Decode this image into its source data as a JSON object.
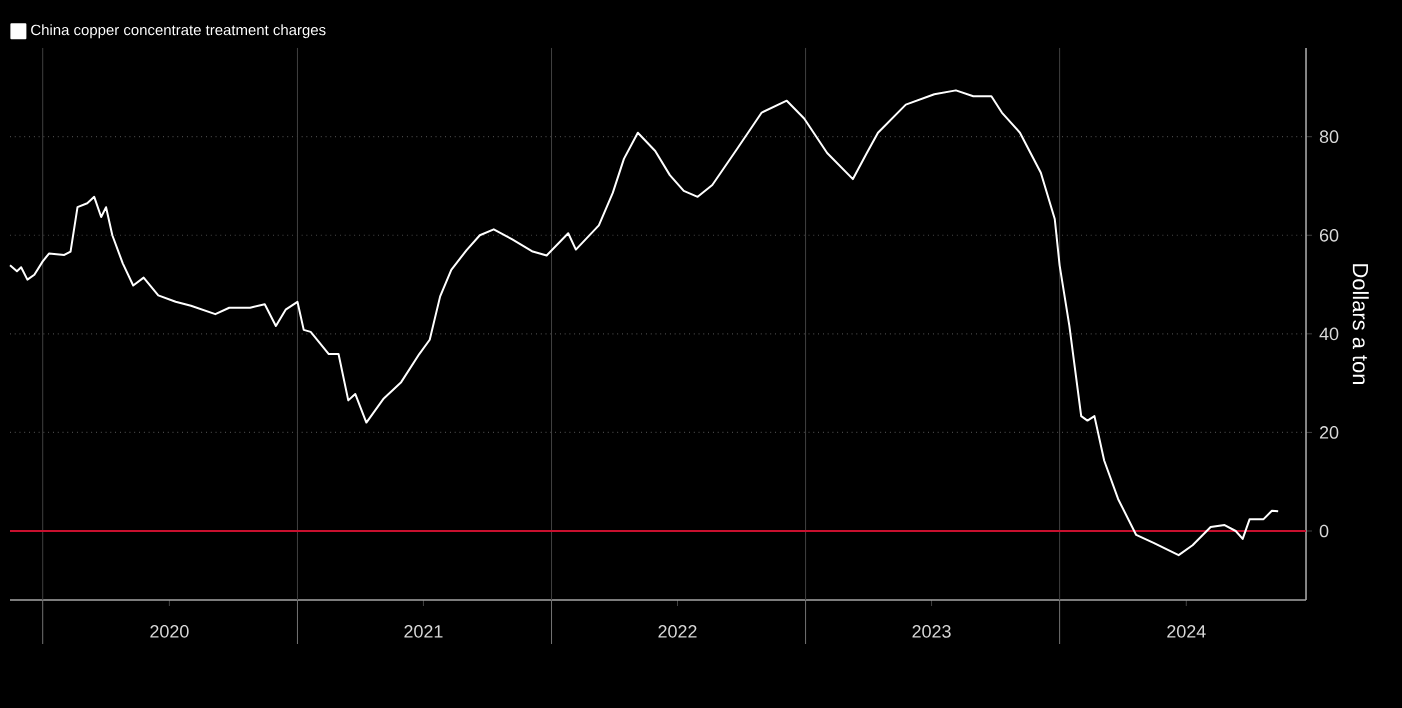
{
  "chart_data": {
    "type": "line",
    "x": [
      "2019-11-15",
      "2019-11-25",
      "2019-12-01",
      "2019-12-10",
      "2019-12-20",
      "2020-01-01",
      "2020-01-10",
      "2020-02-01",
      "2020-02-10",
      "2020-02-20",
      "2020-03-05",
      "2020-03-15",
      "2020-03-25",
      "2020-04-01",
      "2020-04-10",
      "2020-04-25",
      "2020-05-10",
      "2020-05-25",
      "2020-06-15",
      "2020-07-10",
      "2020-08-01",
      "2020-09-05",
      "2020-09-25",
      "2020-10-25",
      "2020-11-15",
      "2020-12-01",
      "2020-12-15",
      "2021-01-01",
      "2021-01-10",
      "2021-01-20",
      "2021-02-15",
      "2021-03-01",
      "2021-03-15",
      "2021-03-25",
      "2021-04-10",
      "2021-05-05",
      "2021-05-30",
      "2021-06-25",
      "2021-07-10",
      "2021-07-25",
      "2021-08-10",
      "2021-09-01",
      "2021-09-20",
      "2021-10-10",
      "2021-11-05",
      "2021-12-05",
      "2021-12-25",
      "2022-01-25",
      "2022-02-05",
      "2022-03-10",
      "2022-03-30",
      "2022-04-15",
      "2022-05-05",
      "2022-05-30",
      "2022-06-20",
      "2022-07-10",
      "2022-07-30",
      "2022-08-20",
      "2022-09-25",
      "2022-10-30",
      "2022-12-05",
      "2022-12-30",
      "2023-02-01",
      "2023-03-10",
      "2023-03-30",
      "2023-04-15",
      "2023-05-25",
      "2023-07-05",
      "2023-08-05",
      "2023-08-30",
      "2023-09-25",
      "2023-10-10",
      "2023-11-05",
      "2023-12-05",
      "2023-12-25",
      "2024-01-01",
      "2024-01-15",
      "2024-02-01",
      "2024-02-10",
      "2024-02-20",
      "2024-03-05",
      "2024-03-25",
      "2024-04-20",
      "2024-05-15",
      "2024-06-20",
      "2024-07-10",
      "2024-08-05",
      "2024-08-25",
      "2024-09-10",
      "2024-09-20",
      "2024-09-30",
      "2024-10-20",
      "2024-11-01",
      "2024-11-10"
    ],
    "series": [
      {
        "name": "China copper concentrate treatment charges",
        "color": "#ffffff",
        "values": [
          53.9,
          52.7,
          53.5,
          51,
          52,
          54.7,
          56.3,
          56,
          56.7,
          65.7,
          66.5,
          67.8,
          63.7,
          65.7,
          60,
          54.3,
          49.8,
          51.4,
          47.8,
          46.5,
          45.7,
          44,
          45.3,
          45.3,
          46,
          41.6,
          44.9,
          46.5,
          40.8,
          40.4,
          35.9,
          35.9,
          26.5,
          27.8,
          22,
          26.9,
          30.2,
          35.9,
          38.8,
          47.6,
          53,
          57,
          60,
          61.2,
          59.2,
          56.7,
          55.9,
          60.4,
          57.1,
          62,
          68.6,
          75.5,
          80.8,
          77.1,
          72.2,
          69,
          67.8,
          70.2,
          77.6,
          84.9,
          87.3,
          83.7,
          76.7,
          71.4,
          76.7,
          80.8,
          86.5,
          88.6,
          89.4,
          88.2,
          88.2,
          84.9,
          80.8,
          72.7,
          63.3,
          53.9,
          41.6,
          23.3,
          22.4,
          23.3,
          14.3,
          6.5,
          -0.8,
          -2.4,
          -4.9,
          -2.9,
          0.8,
          1.2,
          0,
          -1.6,
          2.4,
          2.4,
          4.1,
          4
        ]
      }
    ],
    "ylabel": "Dollars a ton",
    "xlim": [
      "2019-11-15",
      "2024-12-20"
    ],
    "xticks": [
      {
        "value": "2020-01-01",
        "label": null
      },
      {
        "value": "2020-07-01",
        "label": "2020"
      },
      {
        "value": "2021-01-01",
        "label": null
      },
      {
        "value": "2021-07-01",
        "label": "2021"
      },
      {
        "value": "2022-01-01",
        "label": null
      },
      {
        "value": "2022-07-01",
        "label": "2022"
      },
      {
        "value": "2023-01-01",
        "label": null
      },
      {
        "value": "2023-07-01",
        "label": "2023"
      },
      {
        "value": "2024-01-01",
        "label": null
      },
      {
        "value": "2024-07-01",
        "label": "2024"
      }
    ],
    "ylim": [
      -14,
      98
    ],
    "yticks": [
      0,
      20,
      40,
      60,
      80
    ],
    "ref_lines": [
      {
        "axis": "y",
        "value": 0,
        "color": "#c8102e"
      }
    ],
    "grid": true,
    "legend": "top left",
    "marker": "none",
    "line_style": "solid"
  }
}
